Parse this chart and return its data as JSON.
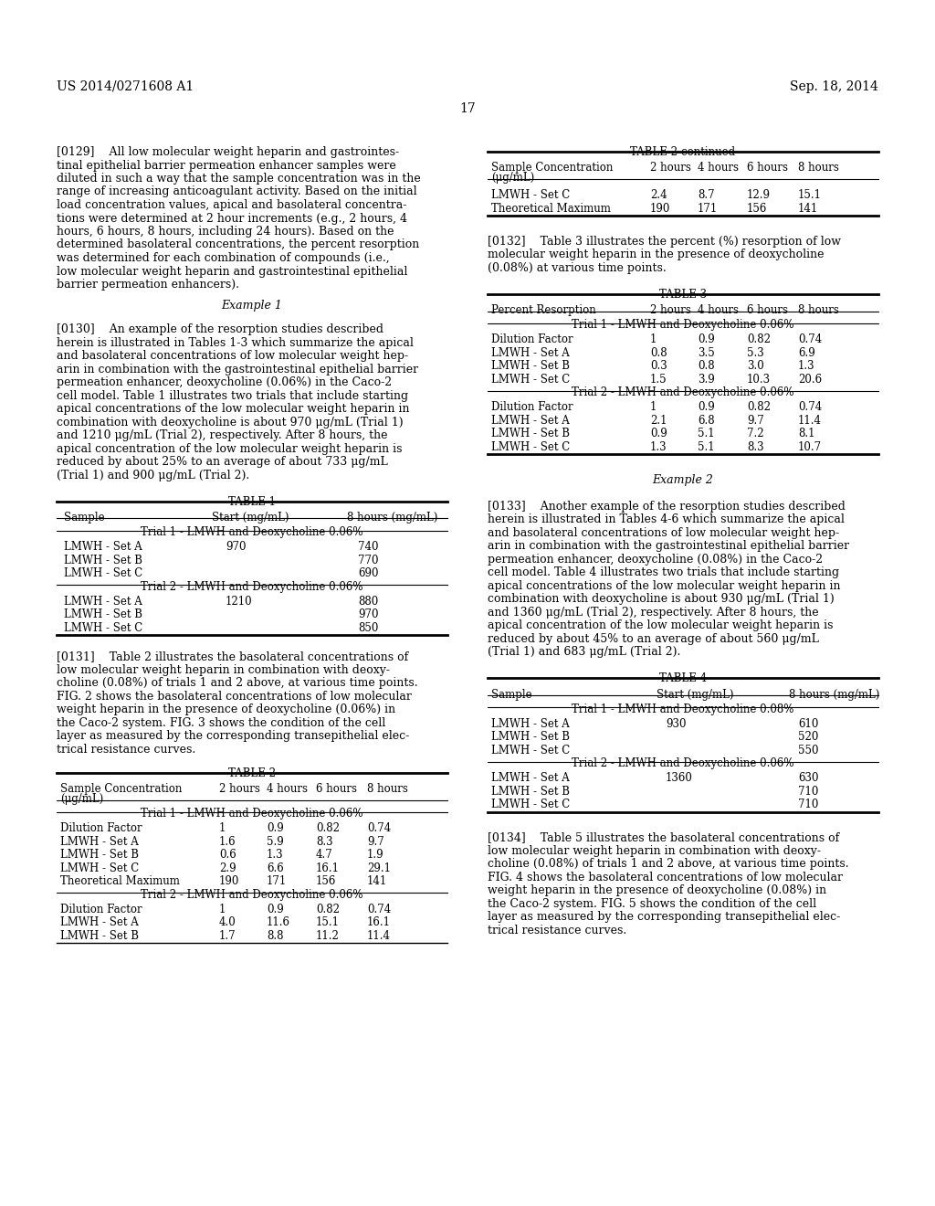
{
  "header_left": "US 2014/0271608 A1",
  "header_right": "Sep. 18, 2014",
  "page_number": "17",
  "background_color": "#ffffff"
}
